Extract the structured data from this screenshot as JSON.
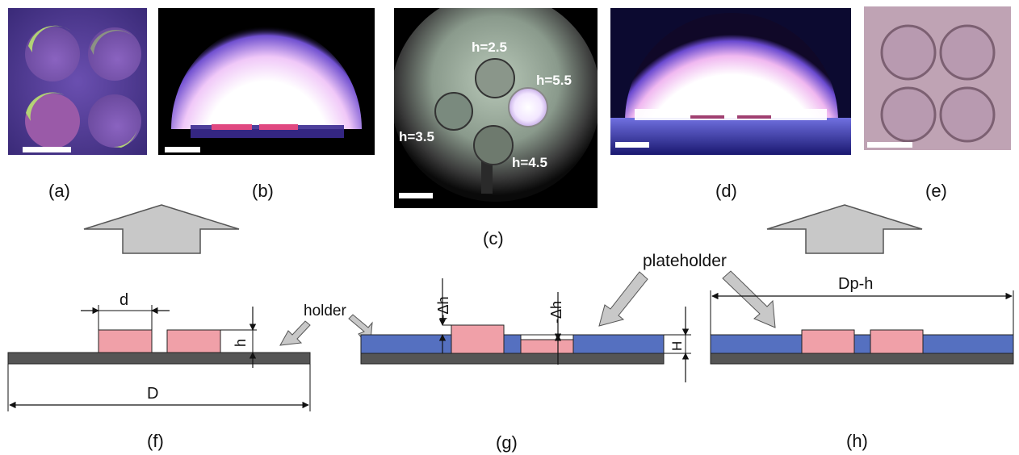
{
  "captions": {
    "a": "(a)",
    "b": "(b)",
    "c": "(c)",
    "d": "(d)",
    "e": "(e)",
    "f": "(f)",
    "g": "(g)",
    "h": "(h)"
  },
  "panel_c": {
    "labels": [
      "h=2.5",
      "h=5.5",
      "h=3.5",
      "h=4.5"
    ]
  },
  "panel_f": {
    "d_label": "d",
    "h_label": "h",
    "D_label": "D",
    "holder_label": "holder"
  },
  "panel_g": {
    "plus_dh_label": "+Δh",
    "minus_dh_label": "-Δh",
    "H_label": "H"
  },
  "panel_h": {
    "plateholder_label": "plateholder",
    "dph_label": "Dp-h"
  },
  "colors": {
    "sample_pink": "#f0a0a8",
    "holder_dark": "#555555",
    "plate_blue": "#5570c0",
    "arrow_gray": "#c8c8c8",
    "plasma_white": "#ffffff",
    "plasma_purple": "#8a5cd0"
  }
}
